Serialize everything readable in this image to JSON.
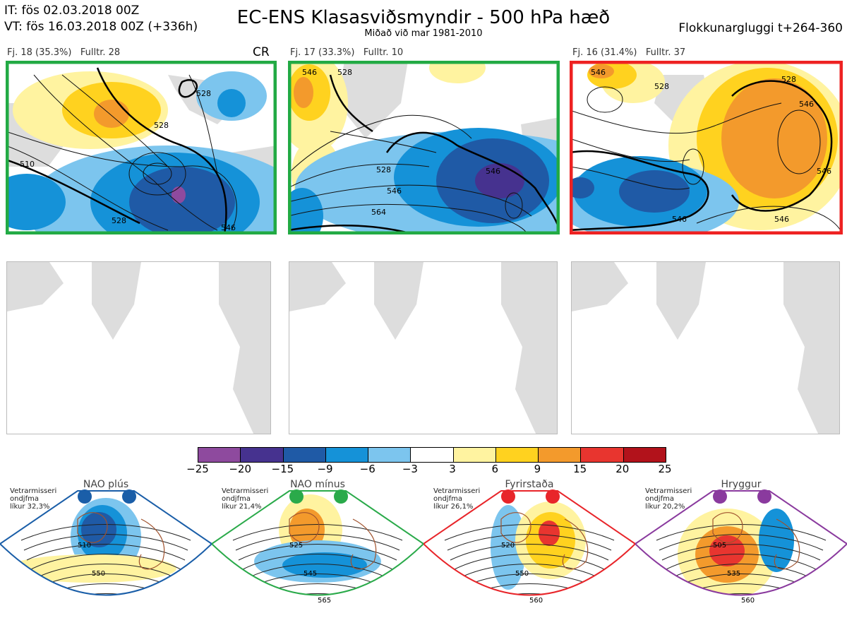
{
  "header": {
    "it_line": "IT: fös 02.03.2018 00Z",
    "vt_line": "VT: fös 16.03.2018 00Z  (+336h)",
    "title": "EC-ENS Klasasviðsmyndir - 500 hPa hæð",
    "subtitle": "Miðað við mar 1981-2010",
    "window": "Flokkunargluggi t+264-360"
  },
  "clusters": [
    {
      "label": "Fj. 18 (35.3%)",
      "fulltr": "Fulltr. 28",
      "tag": "CR",
      "border_color": "#22aa44"
    },
    {
      "label": "Fj. 17 (33.3%)",
      "fulltr": "Fulltr. 10",
      "tag": "",
      "border_color": "#22aa44"
    },
    {
      "label": "Fj. 16 (31.4%)",
      "fulltr": "Fulltr. 37",
      "tag": "",
      "border_color": "#ee2222"
    }
  ],
  "contour_labels": {
    "p1": [
      "510",
      "528",
      "528",
      "546",
      "528",
      "546"
    ],
    "p2": [
      "546",
      "528",
      "528",
      "546",
      "564",
      "546"
    ],
    "p3": [
      "546",
      "528",
      "528",
      "546",
      "546",
      "546",
      "546"
    ]
  },
  "colorbar": {
    "ticks": [
      "−25",
      "−20",
      "−15",
      "−9",
      "−6",
      "−3",
      "3",
      "6",
      "9",
      "15",
      "20",
      "25"
    ],
    "colors": [
      "#8e4a9e",
      "#46328f",
      "#1f5aa6",
      "#1592d8",
      "#7cc5ee",
      "#ffffff",
      "#fff3a0",
      "#ffd21f",
      "#f39a2c",
      "#e8352f",
      "#b2121b"
    ]
  },
  "regimes": [
    {
      "name": "NAO plús",
      "note": [
        "Vetrarmisseri",
        "ondjfma",
        "líkur 32,3%"
      ],
      "color": "#1a5ea8",
      "labels": [
        "510",
        "550"
      ]
    },
    {
      "name": "NAO mínus",
      "note": [
        "Vetrarmisseri",
        "ondjfma",
        "líkur 21,4%"
      ],
      "color": "#2aaa4a",
      "labels": [
        "525",
        "545",
        "565"
      ]
    },
    {
      "name": "Fyrirstaða",
      "note": [
        "Vetrarmisseri",
        "ondjfma",
        "líkur 26,1%"
      ],
      "color": "#e8252a",
      "labels": [
        "520",
        "550",
        "560"
      ]
    },
    {
      "name": "Hryggur",
      "note": [
        "Vetrarmisseri",
        "ondjfma",
        "líkur 20,2%"
      ],
      "color": "#8a3a9e",
      "labels": [
        "505",
        "535",
        "560"
      ]
    }
  ]
}
